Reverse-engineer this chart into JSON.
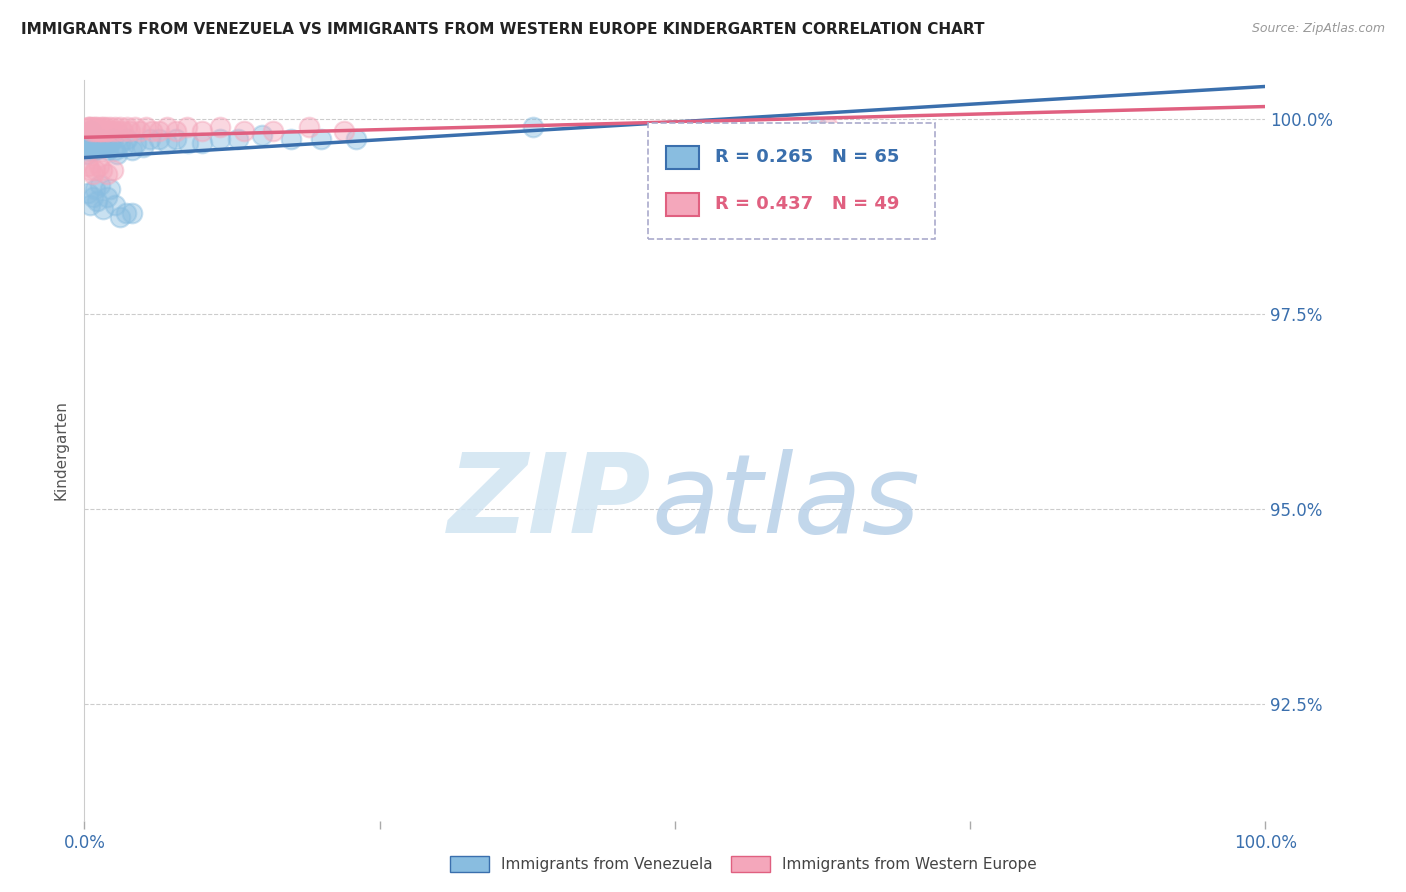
{
  "title": "IMMIGRANTS FROM VENEZUELA VS IMMIGRANTS FROM WESTERN EUROPE KINDERGARTEN CORRELATION CHART",
  "source": "Source: ZipAtlas.com",
  "ylabel": "Kindergarten",
  "yticks_labels": [
    "92.5%",
    "95.0%",
    "97.5%",
    "100.0%"
  ],
  "ytick_vals": [
    0.925,
    0.95,
    0.975,
    1.0
  ],
  "xrange": [
    0.0,
    1.0
  ],
  "yrange": [
    0.91,
    1.005
  ],
  "R_venezuela": 0.265,
  "N_venezuela": 65,
  "R_western_europe": 0.437,
  "N_western_europe": 49,
  "color_venezuela": "#89bde0",
  "color_western_europe": "#f4a7bb",
  "color_trendline_venezuela": "#3a6fad",
  "color_trendline_western_europe": "#e06080",
  "background_color": "#ffffff",
  "legend1_label": "Immigrants from Venezuela",
  "legend2_label": "Immigrants from Western Europe",
  "scatter_venezuela_x": [
    0.002,
    0.003,
    0.004,
    0.004,
    0.005,
    0.005,
    0.005,
    0.006,
    0.006,
    0.007,
    0.007,
    0.008,
    0.008,
    0.009,
    0.009,
    0.01,
    0.01,
    0.011,
    0.011,
    0.012,
    0.013,
    0.014,
    0.015,
    0.016,
    0.017,
    0.018,
    0.019,
    0.02,
    0.022,
    0.024,
    0.026,
    0.028,
    0.03,
    0.033,
    0.036,
    0.04,
    0.044,
    0.05,
    0.056,
    0.063,
    0.07,
    0.078,
    0.088,
    0.1,
    0.115,
    0.13,
    0.15,
    0.175,
    0.2,
    0.23,
    0.003,
    0.005,
    0.007,
    0.009,
    0.011,
    0.013,
    0.016,
    0.019,
    0.022,
    0.026,
    0.03,
    0.035,
    0.04,
    0.38,
    0.62
  ],
  "scatter_venezuela_y": [
    0.9955,
    0.996,
    0.9965,
    0.9975,
    0.997,
    0.9975,
    0.998,
    0.9965,
    0.9985,
    0.997,
    0.998,
    0.996,
    0.9975,
    0.9965,
    0.9975,
    0.996,
    0.997,
    0.9965,
    0.9975,
    0.997,
    0.9975,
    0.997,
    0.9965,
    0.997,
    0.9965,
    0.9965,
    0.997,
    0.996,
    0.997,
    0.9975,
    0.996,
    0.9955,
    0.997,
    0.9965,
    0.9975,
    0.996,
    0.997,
    0.9965,
    0.9975,
    0.9975,
    0.997,
    0.9975,
    0.997,
    0.997,
    0.9975,
    0.9975,
    0.998,
    0.9975,
    0.9975,
    0.9975,
    0.9905,
    0.989,
    0.99,
    0.991,
    0.9895,
    0.9915,
    0.9885,
    0.99,
    0.991,
    0.989,
    0.9875,
    0.988,
    0.988,
    0.999,
    0.999
  ],
  "scatter_western_europe_x": [
    0.003,
    0.004,
    0.005,
    0.006,
    0.007,
    0.008,
    0.009,
    0.01,
    0.011,
    0.012,
    0.013,
    0.014,
    0.015,
    0.016,
    0.017,
    0.018,
    0.019,
    0.02,
    0.022,
    0.024,
    0.026,
    0.028,
    0.03,
    0.033,
    0.036,
    0.039,
    0.043,
    0.047,
    0.052,
    0.057,
    0.063,
    0.07,
    0.078,
    0.087,
    0.1,
    0.115,
    0.135,
    0.16,
    0.19,
    0.22,
    0.003,
    0.005,
    0.007,
    0.009,
    0.012,
    0.015,
    0.019,
    0.024,
    0.63
  ],
  "scatter_western_europe_y": [
    0.999,
    0.999,
    0.999,
    0.9985,
    0.999,
    0.9985,
    0.999,
    0.9985,
    0.999,
    0.9985,
    0.9985,
    0.999,
    0.9985,
    0.999,
    0.9985,
    0.999,
    0.9985,
    0.9985,
    0.999,
    0.9985,
    0.999,
    0.9985,
    0.999,
    0.9985,
    0.999,
    0.9985,
    0.999,
    0.9985,
    0.999,
    0.9985,
    0.9985,
    0.999,
    0.9985,
    0.999,
    0.9985,
    0.999,
    0.9985,
    0.9985,
    0.999,
    0.9985,
    0.994,
    0.9935,
    0.993,
    0.9935,
    0.994,
    0.9935,
    0.993,
    0.9935,
    0.999
  ]
}
